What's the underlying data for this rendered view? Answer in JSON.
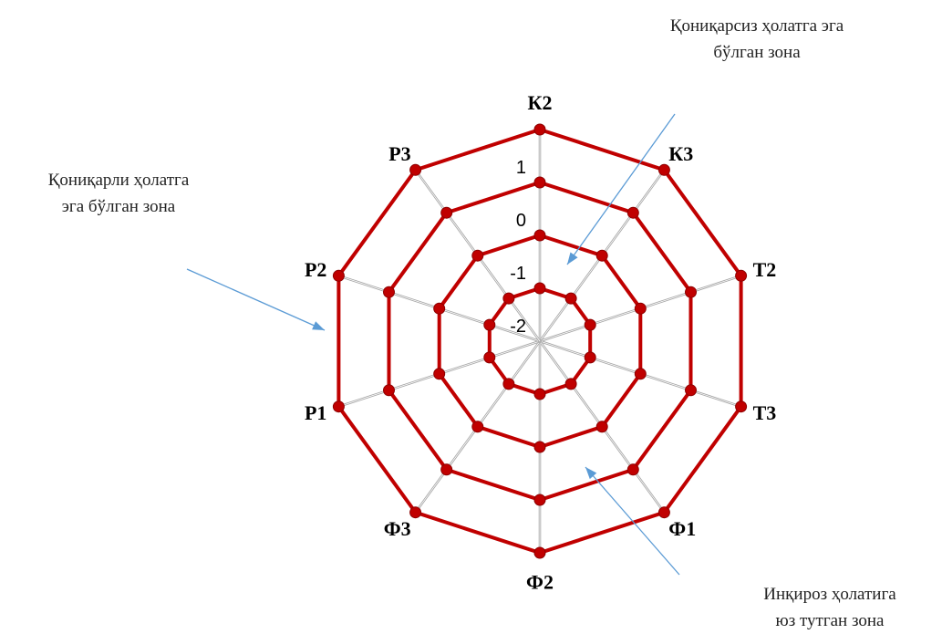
{
  "chart_data": {
    "type": "radar",
    "title": "",
    "axes": [
      "К2",
      "К3",
      "Т2",
      "Т3",
      "Ф1",
      "Ф2",
      "Ф3",
      "Р1",
      "Р2",
      "Р3"
    ],
    "ticks": [
      "-2",
      "-1",
      "0",
      "1"
    ],
    "scale_min": -2,
    "series": [
      {
        "values": [
          2,
          2,
          2,
          2,
          2,
          2,
          2,
          2,
          2,
          2
        ]
      },
      {
        "values": [
          1,
          1,
          1,
          1,
          1,
          1,
          1,
          1,
          1,
          1
        ]
      },
      {
        "values": [
          0,
          0,
          0,
          0,
          0,
          0,
          0,
          0,
          0,
          0
        ]
      },
      {
        "values": [
          -1,
          -1,
          -1,
          -1,
          -1,
          -1,
          -1,
          -1,
          -1,
          -1
        ]
      }
    ],
    "series_color": "#c00000",
    "grid": true
  },
  "annotations": {
    "top_right": {
      "line1": "Қониқарсиз ҳолатга эга",
      "line2": "бўлган зона"
    },
    "left": {
      "line1": "Қониқарли ҳолатга",
      "line2": "эга бўлган зона"
    },
    "bottom_right": {
      "line1": "Инқироз ҳолатига",
      "line2": "юз тутган зона"
    }
  },
  "colors": {
    "series": "#c00000",
    "arrow": "#5b9bd5",
    "grid": "#a6a6a6"
  }
}
